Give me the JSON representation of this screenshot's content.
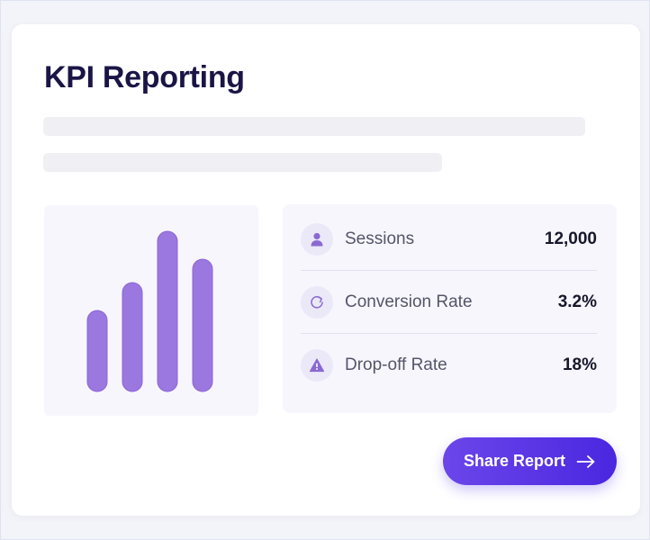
{
  "card": {
    "title": "KPI Reporting"
  },
  "chart": {
    "values": [
      90,
      121,
      178,
      147
    ],
    "bar_color": "#9b77e0"
  },
  "metrics": [
    {
      "icon": "person-icon",
      "label": "Sessions",
      "value": "12,000"
    },
    {
      "icon": "refresh-icon",
      "label": "Conversion Rate",
      "value": "3.2%"
    },
    {
      "icon": "warning-icon",
      "label": "Drop-off Rate",
      "value": "18%"
    }
  ],
  "actions": {
    "share_label": "Share Report",
    "share_icon": "arrow-right-icon"
  },
  "colors": {
    "accent": "#5a35e6",
    "icon_tint": "#8a69d2",
    "title": "#1b1546"
  }
}
